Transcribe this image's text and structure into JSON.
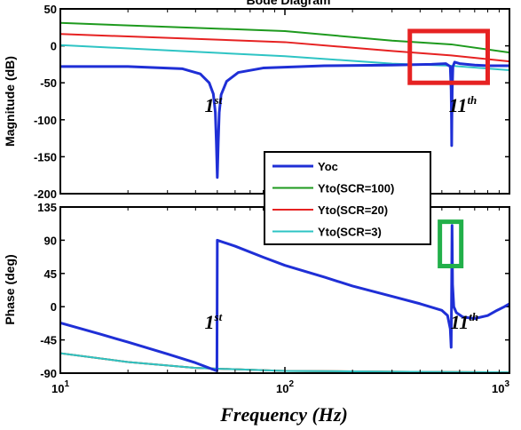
{
  "chart_data": {
    "type": "line",
    "title": "Bode Diagram",
    "xlabel": "Frequency (Hz)",
    "x_scale": "log",
    "xlim": [
      10,
      1000
    ],
    "x_ticks": [
      {
        "value": 10,
        "base": "10",
        "exp": "1"
      },
      {
        "value": 100,
        "base": "10",
        "exp": "2"
      },
      {
        "value": 1000,
        "base": "10",
        "exp": "3"
      }
    ],
    "grid": false,
    "colors": {
      "Yoc": "#1f2fd6",
      "Yto(SCR=100)": "#1e9a1e",
      "Yto(SCR=20)": "#e62222",
      "Yto(SCR=3)": "#2ec4c4",
      "highlight_red": "#e62222",
      "highlight_green": "#22b04a"
    },
    "legend": {
      "placement": "center",
      "entries": [
        "Yoc",
        "Yto(SCR=100)",
        "Yto(SCR=20)",
        "Yto(SCR=3)"
      ]
    },
    "panels": [
      {
        "name": "magnitude",
        "ylabel": "Magnitude (dB)",
        "ylim": [
          -200,
          50
        ],
        "yticks": [
          50,
          0,
          -50,
          -100,
          -150,
          -200
        ],
        "annotations": [
          {
            "text": "1",
            "sup": "st",
            "x": 48,
            "y": -80
          },
          {
            "text": "11",
            "sup": "th",
            "x": 620,
            "y": -80
          }
        ],
        "highlight_box": {
          "color": "red",
          "x_range": [
            360,
            800
          ],
          "y_range": [
            -50,
            20
          ]
        },
        "series": [
          {
            "name": "Yoc",
            "points": [
              [
                10,
                -28
              ],
              [
                20,
                -28
              ],
              [
                35,
                -31
              ],
              [
                42,
                -38
              ],
              [
                46,
                -50
              ],
              [
                48,
                -65
              ],
              [
                49,
                -90
              ],
              [
                49.5,
                -130
              ],
              [
                50,
                -178
              ],
              [
                50.5,
                -130
              ],
              [
                51,
                -90
              ],
              [
                52,
                -66
              ],
              [
                55,
                -48
              ],
              [
                62,
                -36
              ],
              [
                80,
                -30
              ],
              [
                150,
                -27
              ],
              [
                300,
                -26
              ],
              [
                450,
                -25
              ],
              [
                520,
                -24
              ],
              [
                545,
                -28
              ],
              [
                550,
                -60
              ],
              [
                552,
                -100
              ],
              [
                553,
                -135
              ],
              [
                554,
                -100
              ],
              [
                556,
                -60
              ],
              [
                560,
                -28
              ],
              [
                570,
                -22
              ],
              [
                600,
                -24
              ],
              [
                700,
                -26
              ],
              [
                800,
                -27
              ],
              [
                1000,
                -27
              ]
            ]
          },
          {
            "name": "Yto(SCR=100)",
            "points": [
              [
                10,
                31
              ],
              [
                100,
                20
              ],
              [
                300,
                7
              ],
              [
                550,
                2
              ],
              [
                1000,
                -9
              ]
            ]
          },
          {
            "name": "Yto(SCR=20)",
            "points": [
              [
                10,
                16
              ],
              [
                100,
                5
              ],
              [
                300,
                -7
              ],
              [
                550,
                -13
              ],
              [
                1000,
                -21
              ]
            ]
          },
          {
            "name": "Yto(SCR=3)",
            "points": [
              [
                10,
                1
              ],
              [
                100,
                -14
              ],
              [
                300,
                -24
              ],
              [
                550,
                -27
              ],
              [
                1000,
                -33
              ]
            ]
          }
        ]
      },
      {
        "name": "phase",
        "ylabel": "Phase (deg)",
        "ylim": [
          -90,
          135
        ],
        "yticks": [
          135,
          90,
          45,
          0,
          -45,
          -90
        ],
        "annotations": [
          {
            "text": "1",
            "sup": "st",
            "x": 48,
            "y": -20
          },
          {
            "text": "11",
            "sup": "th",
            "x": 630,
            "y": -20
          }
        ],
        "highlight_box": {
          "color": "green",
          "x_range": [
            490,
            610
          ],
          "y_range": [
            55,
            115
          ]
        },
        "series": [
          {
            "name": "Yoc",
            "points": [
              [
                10,
                -22
              ],
              [
                15,
                -37
              ],
              [
                20,
                -48
              ],
              [
                30,
                -64
              ],
              [
                40,
                -76
              ],
              [
                49.8,
                -87
              ],
              [
                50,
                90
              ],
              [
                60,
                82
              ],
              [
                80,
                67
              ],
              [
                100,
                56
              ],
              [
                150,
                40
              ],
              [
                200,
                28
              ],
              [
                300,
                14
              ],
              [
                400,
                4
              ],
              [
                500,
                -5
              ],
              [
                530,
                -12
              ],
              [
                545,
                -30
              ],
              [
                550,
                -55
              ],
              [
                552,
                0
              ],
              [
                555,
                110
              ],
              [
                558,
                30
              ],
              [
                565,
                0
              ],
              [
                580,
                -8
              ],
              [
                620,
                -14
              ],
              [
                700,
                -16
              ],
              [
                800,
                -12
              ],
              [
                880,
                -5
              ],
              [
                950,
                0
              ],
              [
                1000,
                4
              ]
            ]
          },
          {
            "name": "Yto(SCR=100)",
            "points": [
              [
                10,
                -63
              ],
              [
                20,
                -75
              ],
              [
                40,
                -83
              ],
              [
                100,
                -87
              ],
              [
                300,
                -88
              ],
              [
                1000,
                -89
              ]
            ]
          },
          {
            "name": "Yto(SCR=20)",
            "points": [
              [
                10,
                -63
              ],
              [
                20,
                -75
              ],
              [
                40,
                -83
              ],
              [
                100,
                -87
              ],
              [
                300,
                -88
              ],
              [
                1000,
                -89
              ]
            ]
          },
          {
            "name": "Yto(SCR=3)",
            "points": [
              [
                10,
                -63
              ],
              [
                20,
                -75
              ],
              [
                40,
                -83
              ],
              [
                100,
                -87
              ],
              [
                300,
                -88
              ],
              [
                1000,
                -89
              ]
            ]
          }
        ]
      }
    ]
  }
}
